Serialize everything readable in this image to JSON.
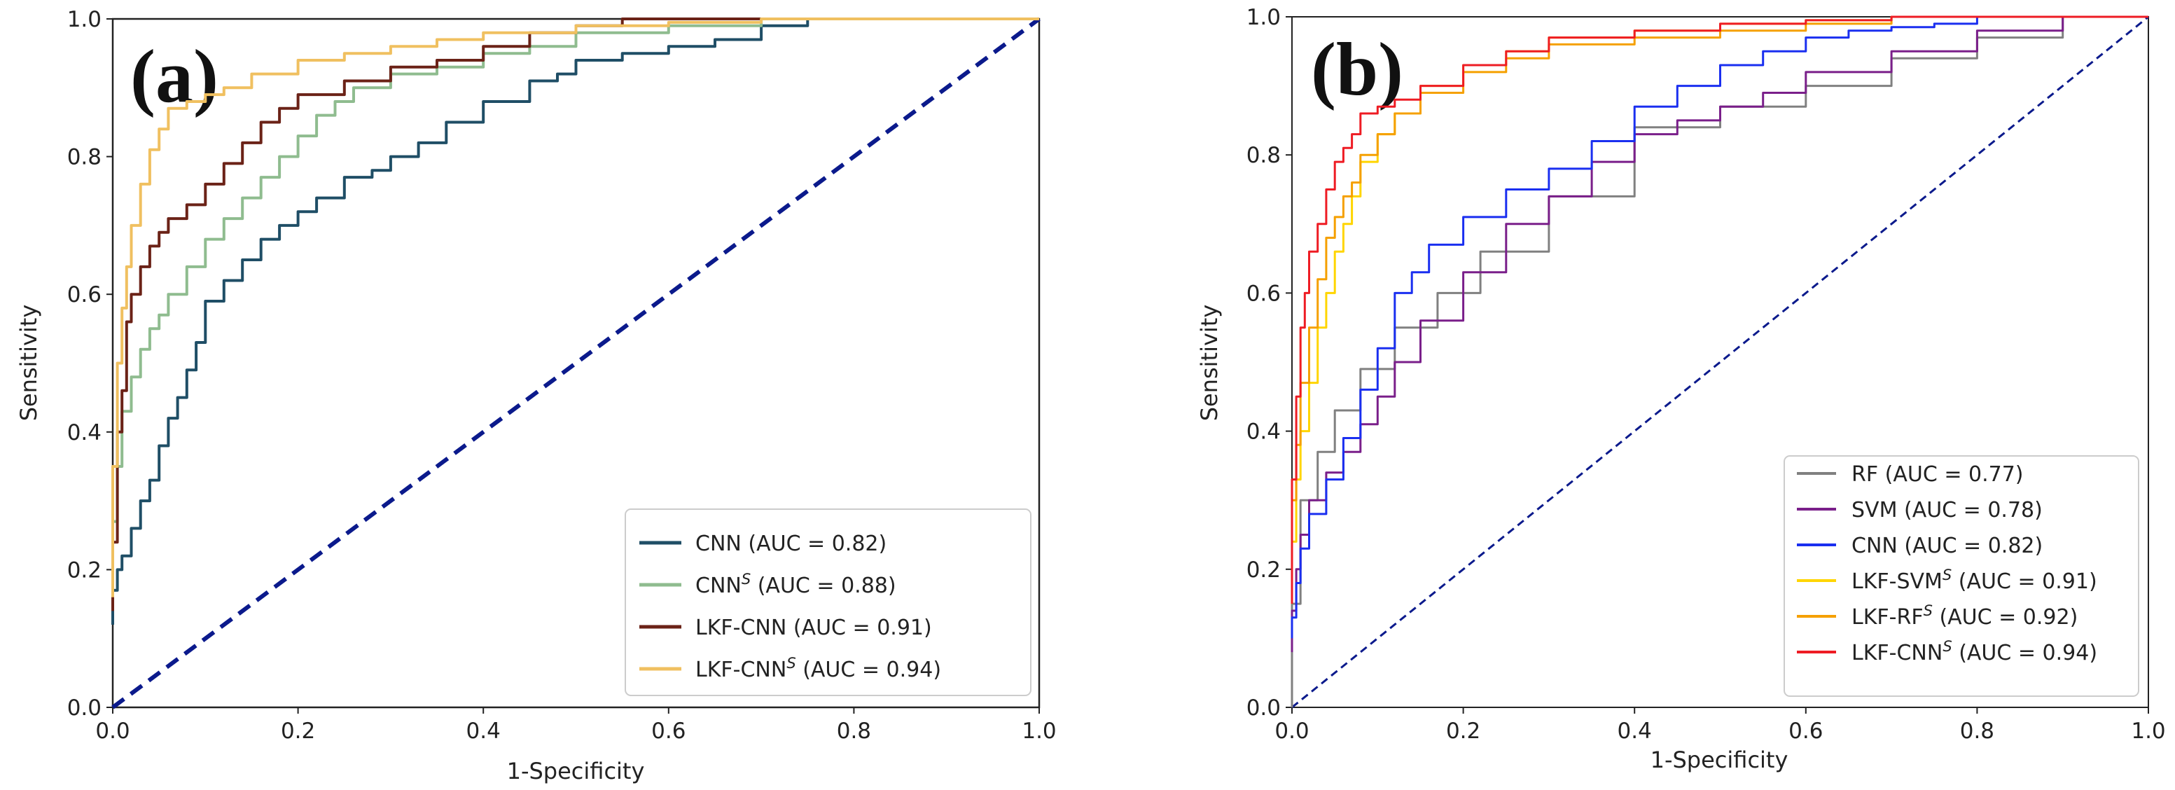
{
  "chart_data": [
    {
      "type": "line",
      "panel_label": "(a)",
      "xlabel": "1-Specificity",
      "ylabel": "Sensitivity",
      "xlim": [
        0,
        1
      ],
      "ylim": [
        0,
        1
      ],
      "x_ticks": [
        "0.0",
        "0.2",
        "0.4",
        "0.6",
        "0.8",
        "1.0"
      ],
      "y_ticks": [
        "0.0",
        "0.2",
        "0.4",
        "0.6",
        "0.8",
        "1.0"
      ],
      "legend_position": "lower-right",
      "series": [
        {
          "name": "CNN",
          "superscript": "",
          "auc": "(AUC = 0.82)",
          "color": "#1f4e66",
          "x": [
            0,
            0.005,
            0.01,
            0.02,
            0.03,
            0.04,
            0.05,
            0.06,
            0.07,
            0.08,
            0.09,
            0.1,
            0.12,
            0.14,
            0.16,
            0.18,
            0.2,
            0.22,
            0.25,
            0.28,
            0.3,
            0.33,
            0.36,
            0.4,
            0.45,
            0.48,
            0.5,
            0.55,
            0.6,
            0.65,
            0.7,
            0.75,
            0.8,
            1.0
          ],
          "y": [
            0.12,
            0.17,
            0.2,
            0.22,
            0.26,
            0.3,
            0.33,
            0.38,
            0.42,
            0.45,
            0.49,
            0.53,
            0.59,
            0.62,
            0.65,
            0.68,
            0.7,
            0.72,
            0.74,
            0.77,
            0.78,
            0.8,
            0.82,
            0.85,
            0.88,
            0.91,
            0.92,
            0.94,
            0.95,
            0.96,
            0.97,
            0.99,
            1.0,
            1.0
          ]
        },
        {
          "name": "CNN",
          "superscript": "S",
          "auc": "(AUC = 0.88)",
          "color": "#8fbc8f",
          "x": [
            0,
            0.005,
            0.01,
            0.02,
            0.03,
            0.04,
            0.05,
            0.06,
            0.08,
            0.1,
            0.12,
            0.14,
            0.16,
            0.18,
            0.2,
            0.22,
            0.24,
            0.26,
            0.3,
            0.35,
            0.4,
            0.45,
            0.5,
            0.6,
            0.7,
            0.8,
            1.0
          ],
          "y": [
            0.2,
            0.27,
            0.35,
            0.43,
            0.48,
            0.52,
            0.55,
            0.57,
            0.6,
            0.64,
            0.68,
            0.71,
            0.74,
            0.77,
            0.8,
            0.83,
            0.86,
            0.88,
            0.9,
            0.92,
            0.93,
            0.95,
            0.96,
            0.98,
            0.99,
            1.0,
            1.0
          ]
        },
        {
          "name": "LKF-CNN",
          "superscript": "",
          "auc": "(AUC = 0.91)",
          "color": "#6b2217",
          "x": [
            0,
            0.005,
            0.01,
            0.015,
            0.02,
            0.03,
            0.04,
            0.05,
            0.06,
            0.08,
            0.1,
            0.12,
            0.14,
            0.16,
            0.18,
            0.2,
            0.25,
            0.3,
            0.35,
            0.4,
            0.45,
            0.5,
            0.55,
            0.6,
            0.7,
            1.0
          ],
          "y": [
            0.14,
            0.24,
            0.4,
            0.46,
            0.56,
            0.6,
            0.64,
            0.67,
            0.69,
            0.71,
            0.73,
            0.76,
            0.79,
            0.82,
            0.85,
            0.87,
            0.89,
            0.91,
            0.93,
            0.94,
            0.96,
            0.98,
            0.99,
            1.0,
            1.0,
            1.0
          ]
        },
        {
          "name": "LKF-CNN",
          "superscript": "S",
          "auc": "(AUC = 0.94)",
          "color": "#f0c060",
          "x": [
            0,
            0.005,
            0.01,
            0.015,
            0.02,
            0.03,
            0.04,
            0.05,
            0.06,
            0.08,
            0.1,
            0.12,
            0.15,
            0.2,
            0.25,
            0.3,
            0.35,
            0.4,
            0.5,
            0.6,
            0.7,
            0.8,
            1.0
          ],
          "y": [
            0.16,
            0.35,
            0.5,
            0.58,
            0.64,
            0.7,
            0.76,
            0.81,
            0.84,
            0.87,
            0.88,
            0.89,
            0.9,
            0.92,
            0.94,
            0.95,
            0.96,
            0.97,
            0.98,
            0.99,
            0.995,
            1.0,
            1.0
          ]
        }
      ],
      "reference_line": {
        "x": [
          0,
          1
        ],
        "y": [
          0,
          1
        ],
        "color": "#0b1a8c"
      }
    },
    {
      "type": "line",
      "panel_label": "(b)",
      "xlabel": "1-Specificity",
      "ylabel": "Sensitivity",
      "xlim": [
        0,
        1
      ],
      "ylim": [
        0,
        1
      ],
      "x_ticks": [
        "0.0",
        "0.2",
        "0.4",
        "0.6",
        "0.8",
        "1.0"
      ],
      "y_ticks": [
        "0.0",
        "0.2",
        "0.4",
        "0.6",
        "0.8",
        "1.0"
      ],
      "legend_position": "lower-right",
      "series": [
        {
          "name": "RF",
          "superscript": "",
          "auc": "(AUC = 0.77)",
          "color": "#808080",
          "x": [
            0,
            0.01,
            0.03,
            0.05,
            0.08,
            0.12,
            0.17,
            0.22,
            0.3,
            0.4,
            0.5,
            0.6,
            0.7,
            0.8,
            0.9,
            1.0
          ],
          "y": [
            0,
            0.15,
            0.3,
            0.37,
            0.43,
            0.49,
            0.55,
            0.6,
            0.66,
            0.74,
            0.84,
            0.87,
            0.9,
            0.94,
            0.97,
            1.0
          ]
        },
        {
          "name": "SVM",
          "superscript": "",
          "auc": "(AUC = 0.78)",
          "color": "#7a1f8a",
          "x": [
            0,
            0.005,
            0.01,
            0.02,
            0.04,
            0.06,
            0.08,
            0.1,
            0.12,
            0.15,
            0.2,
            0.25,
            0.3,
            0.35,
            0.4,
            0.45,
            0.5,
            0.55,
            0.6,
            0.7,
            0.8,
            0.9,
            1.0
          ],
          "y": [
            0.08,
            0.14,
            0.2,
            0.25,
            0.3,
            0.34,
            0.37,
            0.41,
            0.45,
            0.5,
            0.56,
            0.63,
            0.7,
            0.74,
            0.79,
            0.83,
            0.85,
            0.87,
            0.89,
            0.92,
            0.95,
            0.98,
            1.0
          ]
        },
        {
          "name": "CNN",
          "superscript": "",
          "auc": "(AUC = 0.82)",
          "color": "#1a2ff0",
          "x": [
            0,
            0.005,
            0.01,
            0.02,
            0.04,
            0.06,
            0.08,
            0.1,
            0.12,
            0.14,
            0.16,
            0.2,
            0.25,
            0.3,
            0.35,
            0.4,
            0.45,
            0.5,
            0.55,
            0.6,
            0.65,
            0.7,
            0.75,
            0.8,
            1.0
          ],
          "y": [
            0.1,
            0.13,
            0.18,
            0.23,
            0.28,
            0.33,
            0.39,
            0.46,
            0.52,
            0.6,
            0.63,
            0.67,
            0.71,
            0.75,
            0.78,
            0.82,
            0.87,
            0.9,
            0.93,
            0.95,
            0.97,
            0.98,
            0.985,
            0.99,
            1.0
          ]
        },
        {
          "name": "LKF-SVM",
          "superscript": "S",
          "auc": "(AUC = 0.91)",
          "color": "#ffd500",
          "x": [
            0,
            0.005,
            0.01,
            0.02,
            0.03,
            0.04,
            0.05,
            0.06,
            0.07,
            0.08,
            0.1,
            0.12,
            0.15,
            0.2,
            0.25,
            0.3,
            0.4,
            0.5,
            0.6,
            0.7,
            0.8,
            1.0
          ],
          "y": [
            0.15,
            0.24,
            0.33,
            0.4,
            0.47,
            0.55,
            0.6,
            0.66,
            0.7,
            0.74,
            0.79,
            0.83,
            0.86,
            0.9,
            0.93,
            0.95,
            0.97,
            0.98,
            0.99,
            0.995,
            1.0,
            1.0
          ]
        },
        {
          "name": "LKF-RF",
          "superscript": "S",
          "auc": "(AUC = 0.92)",
          "color": "#f5a000",
          "x": [
            0,
            0.005,
            0.01,
            0.02,
            0.03,
            0.04,
            0.05,
            0.06,
            0.07,
            0.08,
            0.1,
            0.12,
            0.15,
            0.2,
            0.25,
            0.3,
            0.4,
            0.5,
            0.6,
            0.7,
            0.8,
            1.0
          ],
          "y": [
            0.18,
            0.3,
            0.38,
            0.47,
            0.55,
            0.62,
            0.68,
            0.71,
            0.74,
            0.76,
            0.8,
            0.83,
            0.86,
            0.89,
            0.92,
            0.94,
            0.96,
            0.97,
            0.98,
            0.99,
            1.0,
            1.0
          ]
        },
        {
          "name": "LKF-CNN",
          "superscript": "S",
          "auc": "(AUC = 0.94)",
          "color": "#ee1c24",
          "x": [
            0,
            0.005,
            0.01,
            0.015,
            0.02,
            0.03,
            0.04,
            0.05,
            0.06,
            0.07,
            0.08,
            0.1,
            0.12,
            0.15,
            0.2,
            0.25,
            0.3,
            0.4,
            0.5,
            0.6,
            0.7,
            0.8,
            1.0
          ],
          "y": [
            0.15,
            0.33,
            0.45,
            0.55,
            0.6,
            0.66,
            0.7,
            0.75,
            0.79,
            0.81,
            0.83,
            0.86,
            0.87,
            0.88,
            0.9,
            0.93,
            0.95,
            0.97,
            0.98,
            0.99,
            0.995,
            1.0,
            1.0
          ]
        }
      ],
      "reference_line": {
        "x": [
          0,
          1
        ],
        "y": [
          0,
          1
        ],
        "color": "#0b1a8c"
      }
    }
  ]
}
